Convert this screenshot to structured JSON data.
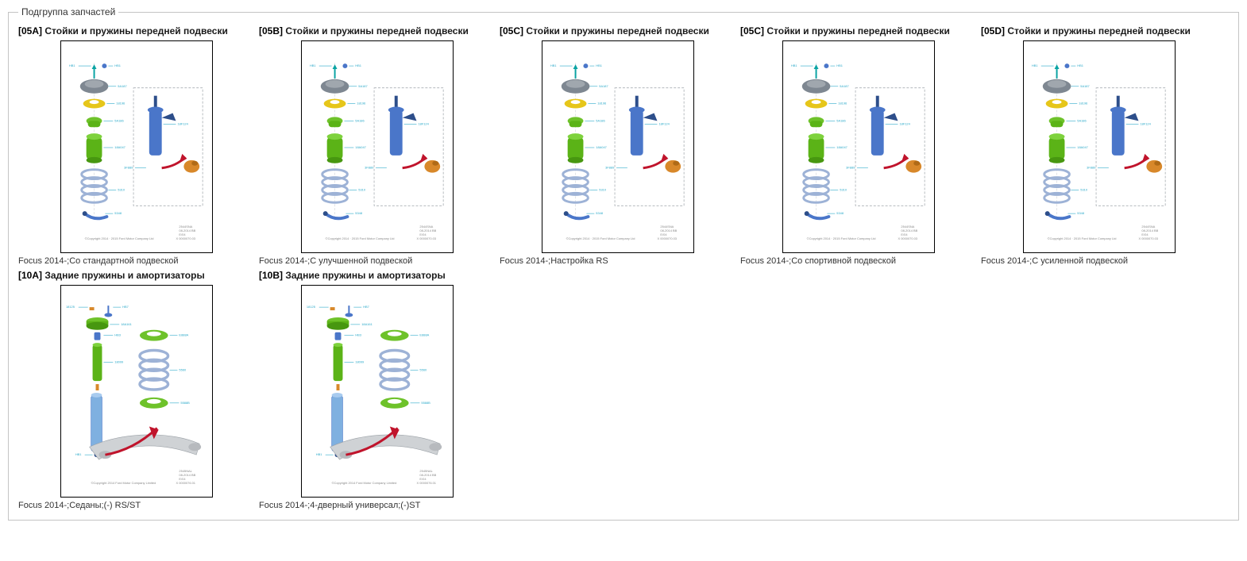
{
  "fieldset_legend": "Подгруппа запчастей",
  "colors": {
    "border": "#c4c4c4",
    "thumb_border": "#000000",
    "title": "#000000",
    "caption": "#333333",
    "teal": "#0aa3a3",
    "blue": "#4a76c9",
    "darkblue": "#2d4e8a",
    "green": "#5bb317",
    "yellow": "#e6c61a",
    "gray": "#bfbfbf",
    "orange": "#d8882a",
    "red": "#c0142c",
    "callout": "#2aa9c9",
    "dash": "#9aa0a6"
  },
  "cards": [
    {
      "kind": "front",
      "code": "[05A]",
      "title": "Стойки и пружины передней подвески",
      "caption": "Focus 2014-;Со стандартной подвеской"
    },
    {
      "kind": "front",
      "code": "[05B]",
      "title": "Стойки и пружины передней подвески",
      "caption": "Focus 2014-;С улучшенной подвеской"
    },
    {
      "kind": "front",
      "code": "[05C]",
      "title": "Стойки и пружины передней подвески",
      "caption": "Focus 2014-;Настройка RS"
    },
    {
      "kind": "front",
      "code": "[05C]",
      "title": "Стойки и пружины передней подвески",
      "caption": "Focus 2014-;Со спортивной подвеской"
    },
    {
      "kind": "front",
      "code": "[05D]",
      "title": "Стойки и пружины передней подвески",
      "caption": "Focus 2014-;С усиленной подвеской"
    },
    {
      "kind": "rear",
      "code": "[10A]",
      "title": "Задние пружины и амортизаторы",
      "caption": "Focus 2014-;Седаны;(-) RS/ST"
    },
    {
      "kind": "rear",
      "code": "[10B]",
      "title": "Задние пружины и амортизаторы",
      "caption": "Focus 2014-;4-дверный универсал;(-)ST"
    }
  ],
  "diagram_front": {
    "callouts": [
      "HB1",
      "HB1",
      "5A187",
      "18196",
      "5A186",
      "18A047",
      "5310",
      "5348"
    ],
    "strut_callouts": [
      "18F124",
      "3F889"
    ],
    "copyright": "©Copyright 2014 · 2015 Ford Motor Company Limited",
    "meta": [
      "2544SNA",
      "08-2014 BB",
      "E/04",
      "X 0000070.03"
    ]
  },
  "diagram_rear": {
    "callouts": [
      "18125",
      "HB7",
      "18A161",
      "HB3",
      "18099",
      "HB1"
    ],
    "ring_callouts": [
      "E888A",
      "5560",
      "5588B"
    ],
    "copyright": "©Copyright 2014 Ford Motor Company Limited",
    "meta": [
      "2545NAL",
      "08-2014 BB",
      "E/04",
      "X 0000076.01"
    ]
  }
}
